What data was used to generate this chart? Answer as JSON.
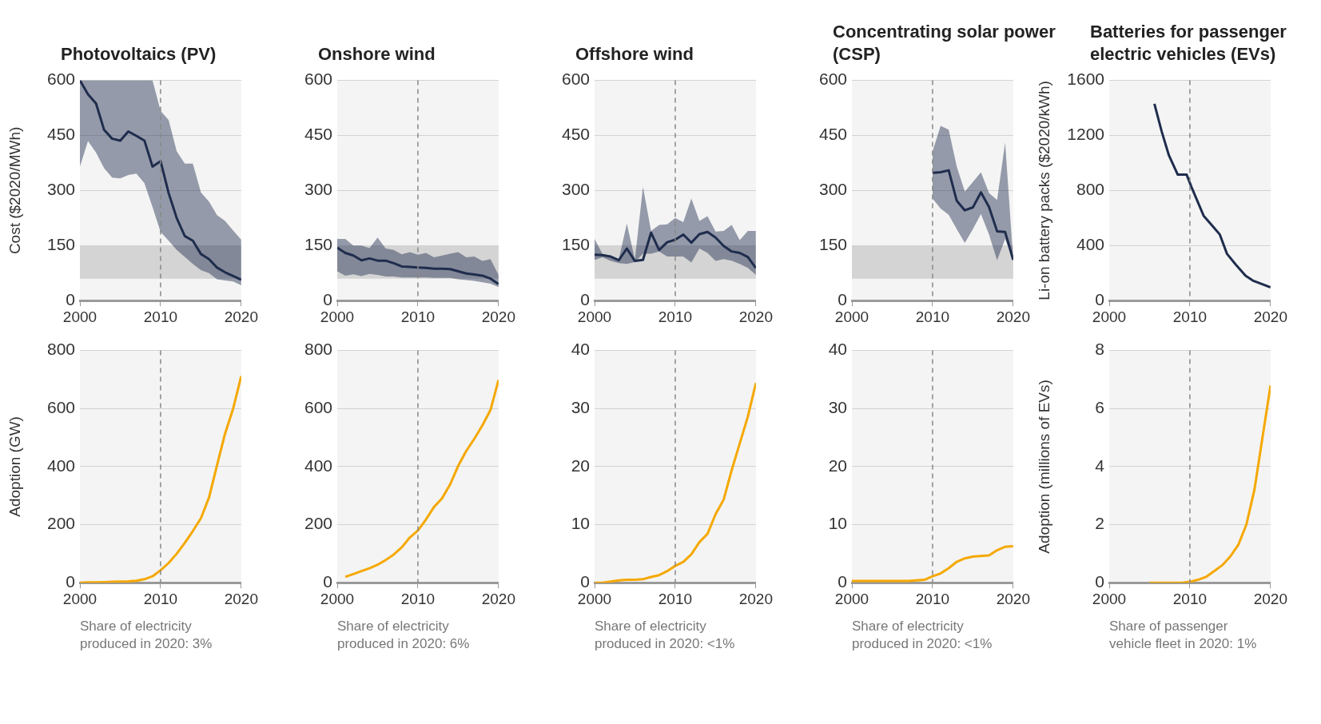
{
  "chart_data": [
    {
      "type": "line",
      "title": "Photovoltaics (PV)",
      "ylabel": "Cost ($2020/MWh)",
      "x": [
        2000,
        2001,
        2002,
        2003,
        2004,
        2005,
        2006,
        2007,
        2008,
        2009,
        2010,
        2011,
        2012,
        2013,
        2014,
        2015,
        2016,
        2017,
        2018,
        2019,
        2020
      ],
      "xlim": [
        2000,
        2020
      ],
      "xticks": [
        2000,
        2010,
        2020
      ],
      "ylim": [
        0,
        600
      ],
      "yticks": [
        0,
        150,
        300,
        450,
        600
      ],
      "grid": "y",
      "series": [
        {
          "color": "#1f2d4d",
          "values": [
            600,
            562,
            537,
            465,
            441,
            436,
            461,
            449,
            436,
            365,
            380,
            293,
            225,
            176,
            163,
            127,
            113,
            90,
            77,
            67,
            57
          ],
          "upper": [
            600,
            600,
            600,
            600,
            600,
            600,
            600,
            600,
            600,
            600,
            517,
            492,
            407,
            373,
            373,
            295,
            270,
            233,
            217,
            191,
            166
          ],
          "lower": [
            365,
            435,
            403,
            361,
            335,
            333,
            342,
            346,
            320,
            255,
            187,
            163,
            138,
            119,
            100,
            83,
            75,
            58,
            55,
            52,
            42
          ]
        }
      ],
      "bands": [
        {
          "axis": "y",
          "from": 60,
          "to": 150,
          "color": "#d4d4d4"
        }
      ],
      "ref_lines": [
        {
          "axis": "x",
          "value": 2010,
          "color": "#888888",
          "line_style": "dashed"
        }
      ]
    },
    {
      "type": "line",
      "title": "Onshore wind",
      "x": [
        2000,
        2001,
        2002,
        2003,
        2004,
        2005,
        2006,
        2007,
        2008,
        2009,
        2010,
        2011,
        2012,
        2013,
        2014,
        2015,
        2016,
        2017,
        2018,
        2019,
        2020
      ],
      "xlim": [
        2000,
        2020
      ],
      "xticks": [
        2000,
        2010,
        2020
      ],
      "ylim": [
        0,
        600
      ],
      "yticks": [
        0,
        150,
        300,
        450,
        600
      ],
      "grid": "y",
      "series": [
        {
          "color": "#1f2d4d",
          "values": [
            144,
            130,
            123,
            110,
            115,
            109,
            109,
            102,
            93,
            92,
            90,
            89,
            87,
            87,
            86,
            80,
            74,
            71,
            68,
            60,
            45
          ],
          "upper": [
            168,
            168,
            150,
            150,
            143,
            172,
            142,
            138,
            126,
            132,
            125,
            130,
            118,
            123,
            128,
            132,
            118,
            120,
            108,
            113,
            70
          ],
          "lower": [
            80,
            68,
            72,
            67,
            73,
            70,
            66,
            66,
            63,
            63,
            63,
            63,
            62,
            62,
            62,
            58,
            56,
            54,
            50,
            46,
            37
          ]
        }
      ],
      "bands": [
        {
          "axis": "y",
          "from": 60,
          "to": 150,
          "color": "#d4d4d4"
        }
      ],
      "ref_lines": [
        {
          "axis": "x",
          "value": 2010,
          "color": "#888888",
          "line_style": "dashed"
        }
      ]
    },
    {
      "type": "line",
      "title": "Offshore wind",
      "x": [
        2000,
        2001,
        2002,
        2003,
        2004,
        2005,
        2006,
        2007,
        2008,
        2009,
        2010,
        2011,
        2012,
        2013,
        2014,
        2015,
        2016,
        2017,
        2018,
        2019,
        2020
      ],
      "xlim": [
        2000,
        2020
      ],
      "xticks": [
        2000,
        2010,
        2020
      ],
      "ylim": [
        0,
        600
      ],
      "yticks": [
        0,
        150,
        300,
        450,
        600
      ],
      "grid": "y",
      "series": [
        {
          "color": "#1f2d4d",
          "values": [
            125,
            124,
            120,
            110,
            142,
            108,
            111,
            185,
            138,
            159,
            166,
            180,
            158,
            181,
            187,
            172,
            149,
            134,
            130,
            119,
            89
          ],
          "upper": [
            168,
            126,
            121,
            112,
            210,
            112,
            310,
            190,
            206,
            208,
            225,
            214,
            278,
            217,
            230,
            188,
            190,
            206,
            165,
            190,
            190
          ],
          "lower": [
            111,
            118,
            108,
            102,
            100,
            105,
            128,
            128,
            134,
            120,
            120,
            120,
            104,
            142,
            130,
            108,
            113,
            109,
            100,
            89,
            70
          ]
        }
      ],
      "bands": [
        {
          "axis": "y",
          "from": 60,
          "to": 150,
          "color": "#d4d4d4"
        }
      ],
      "ref_lines": [
        {
          "axis": "x",
          "value": 2010,
          "color": "#888888",
          "line_style": "dashed"
        }
      ]
    },
    {
      "type": "line",
      "title": "Concentrating solar power (CSP)",
      "x": [
        2010,
        2011,
        2012,
        2013,
        2014,
        2015,
        2016,
        2017,
        2018,
        2019,
        2020
      ],
      "xlim": [
        2000,
        2020
      ],
      "xticks": [
        2000,
        2010,
        2020
      ],
      "ylim": [
        0,
        600
      ],
      "yticks": [
        0,
        150,
        300,
        450,
        600
      ],
      "grid": "y",
      "series": [
        {
          "color": "#1f2d4d",
          "values": [
            348,
            350,
            355,
            272,
            246,
            254,
            295,
            255,
            189,
            187,
            111
          ],
          "upper": [
            407,
            476,
            466,
            365,
            297,
            323,
            350,
            293,
            274,
            431,
            111
          ],
          "lower": [
            278,
            251,
            234,
            195,
            157,
            195,
            236,
            180,
            110,
            168,
            111
          ]
        }
      ],
      "bands": [
        {
          "axis": "y",
          "from": 60,
          "to": 150,
          "color": "#d4d4d4"
        }
      ],
      "ref_lines": [
        {
          "axis": "x",
          "value": 2010,
          "color": "#888888",
          "line_style": "dashed"
        }
      ]
    },
    {
      "type": "line",
      "title": "Batteries for passenger electric vehicles (EVs)",
      "ylabel": "Li-on battery packs ($2020/kWh)",
      "x": [
        2005.6,
        2006.5,
        2007.4,
        2008.5,
        2009.6,
        2010.2,
        2011.7,
        2012.8,
        2013.7,
        2014.6,
        2015.7,
        2016.9,
        2017.8,
        2020
      ],
      "xlim": [
        2000,
        2020
      ],
      "xticks": [
        2000,
        2010,
        2020
      ],
      "ylim": [
        0,
        1600
      ],
      "yticks": [
        0,
        400,
        800,
        1200,
        1600
      ],
      "grid": "y",
      "series": [
        {
          "color": "#1f2d4d",
          "values": [
            1430,
            1230,
            1055,
            915,
            915,
            825,
            617,
            543,
            481,
            340,
            261,
            181,
            146,
            97
          ]
        }
      ],
      "ref_lines": [
        {
          "axis": "x",
          "value": 2010,
          "color": "#888888",
          "line_style": "dashed"
        }
      ]
    },
    {
      "type": "line",
      "ylabel": "Adoption (GW)",
      "x": [
        2000,
        2001,
        2002,
        2003,
        2004,
        2005,
        2006,
        2007,
        2008,
        2009,
        2010,
        2011,
        2012,
        2013,
        2014,
        2015,
        2016,
        2017,
        2018,
        2019,
        2020
      ],
      "xlim": [
        2000,
        2020
      ],
      "xticks": [
        2000,
        2010,
        2020
      ],
      "ylim": [
        0,
        800
      ],
      "yticks": [
        0,
        200,
        400,
        600,
        800
      ],
      "grid": "y",
      "series": [
        {
          "color": "#f5a800",
          "values": [
            0,
            1,
            1,
            2,
            3,
            4,
            5,
            7,
            12,
            22,
            43,
            68,
            100,
            137,
            178,
            222,
            293,
            405,
            514,
            600,
            712
          ]
        }
      ],
      "ref_lines": [
        {
          "axis": "x",
          "value": 2010,
          "color": "#888888",
          "line_style": "dashed"
        }
      ],
      "annotations": [
        "Share of electricity produced in 2020: 3%"
      ]
    },
    {
      "type": "line",
      "x": [
        2001,
        2002,
        2003,
        2004,
        2005,
        2006,
        2007,
        2008,
        2009,
        2010,
        2011,
        2012,
        2013,
        2014,
        2015,
        2016,
        2017,
        2018,
        2019,
        2020
      ],
      "xlim": [
        2000,
        2020
      ],
      "xticks": [
        2000,
        2010,
        2020
      ],
      "ylim": [
        0,
        800
      ],
      "yticks": [
        0,
        200,
        400,
        600,
        800
      ],
      "grid": "y",
      "series": [
        {
          "color": "#f5a800",
          "values": [
            20,
            30,
            40,
            50,
            62,
            78,
            97,
            122,
            156,
            180,
            218,
            261,
            291,
            339,
            403,
            454,
            496,
            542,
            595,
            699
          ]
        }
      ],
      "ref_lines": [
        {
          "axis": "x",
          "value": 2010,
          "color": "#888888",
          "line_style": "dashed"
        }
      ],
      "annotations": [
        "Share of electricity produced in 2020: 6%"
      ]
    },
    {
      "type": "line",
      "x": [
        2000,
        2001,
        2002,
        2003,
        2004,
        2005,
        2006,
        2007,
        2008,
        2009,
        2010,
        2011,
        2012,
        2013,
        2014,
        2015,
        2016,
        2017,
        2018,
        2019,
        2020
      ],
      "xlim": [
        2000,
        2020
      ],
      "xticks": [
        2000,
        2010,
        2020
      ],
      "ylim": [
        0,
        40
      ],
      "yticks": [
        0,
        10,
        20,
        30,
        40
      ],
      "grid": "y",
      "series": [
        {
          "color": "#f5a800",
          "values": [
            0,
            0,
            0.2,
            0.4,
            0.5,
            0.5,
            0.6,
            1.0,
            1.3,
            2.0,
            2.9,
            3.6,
            4.9,
            7.0,
            8.4,
            11.8,
            14.3,
            19.4,
            24,
            28.6,
            34.4
          ]
        }
      ],
      "ref_lines": [
        {
          "axis": "x",
          "value": 2010,
          "color": "#888888",
          "line_style": "dashed"
        }
      ],
      "annotations": [
        "Share of electricity produced in 2020: <1%"
      ]
    },
    {
      "type": "line",
      "x": [
        2000,
        2001,
        2002,
        2003,
        2004,
        2005,
        2006,
        2007,
        2008,
        2009,
        2010,
        2011,
        2012,
        2013,
        2014,
        2015,
        2016,
        2017,
        2018,
        2019,
        2020
      ],
      "xlim": [
        2000,
        2020
      ],
      "xticks": [
        2000,
        2010,
        2020
      ],
      "ylim": [
        0,
        40
      ],
      "yticks": [
        0,
        10,
        20,
        30,
        40
      ],
      "grid": "y",
      "series": [
        {
          "color": "#f5a800",
          "values": [
            0.3,
            0.3,
            0.3,
            0.3,
            0.3,
            0.3,
            0.3,
            0.3,
            0.4,
            0.5,
            1.1,
            1.6,
            2.5,
            3.6,
            4.2,
            4.5,
            4.6,
            4.7,
            5.6,
            6.2,
            6.3
          ]
        }
      ],
      "ref_lines": [
        {
          "axis": "x",
          "value": 2010,
          "color": "#888888",
          "line_style": "dashed"
        }
      ],
      "annotations": [
        "Share of electricity produced in 2020: <1%"
      ]
    },
    {
      "type": "line",
      "ylabel": "Adoption (millions of EVs)",
      "x": [
        2005,
        2006,
        2007,
        2008,
        2009,
        2010,
        2011,
        2012,
        2013,
        2014,
        2015,
        2016,
        2017,
        2018,
        2019,
        2020
      ],
      "xlim": [
        2000,
        2020
      ],
      "xticks": [
        2000,
        2010,
        2020
      ],
      "ylim": [
        0,
        8
      ],
      "yticks": [
        0,
        2,
        4,
        6,
        8
      ],
      "grid": "y",
      "series": [
        {
          "color": "#f5a800",
          "values": [
            0,
            0,
            0,
            0,
            0,
            0.03,
            0.1,
            0.2,
            0.4,
            0.6,
            0.9,
            1.3,
            2.0,
            3.2,
            5.0,
            6.8
          ]
        }
      ],
      "ref_lines": [
        {
          "axis": "x",
          "value": 2010,
          "color": "#888888",
          "line_style": "dashed"
        }
      ],
      "annotations": [
        "Share of passenger vehicle fleet in 2020: 1%"
      ]
    }
  ]
}
